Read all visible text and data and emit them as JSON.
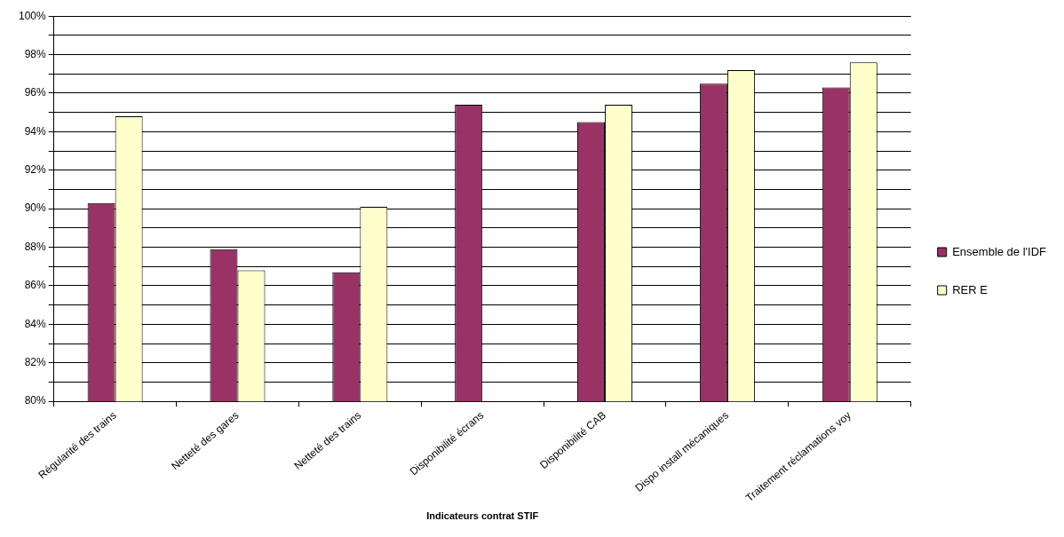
{
  "chart_data": {
    "type": "bar",
    "xlabel": "Indicateurs contrat STIF",
    "categories": [
      "Régularité des trains",
      "Netteté des gares",
      "Netteté des trains",
      "Disponibilité écrans",
      "Disponibilité CAB",
      "Dispo install mécaniques",
      "Traitement réclamations voy"
    ],
    "series": [
      {
        "name": "Ensemble de l'IDF",
        "color": "#993366",
        "values": [
          90.3,
          87.9,
          86.7,
          95.4,
          94.5,
          96.5,
          96.3
        ]
      },
      {
        "name": "RER E",
        "color": "#ffffcc",
        "values": [
          94.8,
          86.8,
          90.1,
          null,
          95.4,
          97.2,
          97.6
        ]
      }
    ],
    "ylim": [
      80,
      100
    ],
    "yticks": [
      {
        "value": 80,
        "label": "80%"
      },
      {
        "value": 81,
        "label": null
      },
      {
        "value": 82,
        "label": "82%"
      },
      {
        "value": 83,
        "label": null
      },
      {
        "value": 84,
        "label": "84%"
      },
      {
        "value": 85,
        "label": null
      },
      {
        "value": 86,
        "label": "86%"
      },
      {
        "value": 87,
        "label": null
      },
      {
        "value": 88,
        "label": "88%"
      },
      {
        "value": 89,
        "label": null
      },
      {
        "value": 90,
        "label": "90%"
      },
      {
        "value": 91,
        "label": null
      },
      {
        "value": 92,
        "label": "92%"
      },
      {
        "value": 93,
        "label": null
      },
      {
        "value": 94,
        "label": "94%"
      },
      {
        "value": 95,
        "label": null
      },
      {
        "value": 96,
        "label": "96%"
      },
      {
        "value": 97,
        "label": null
      },
      {
        "value": 98,
        "label": "98%"
      },
      {
        "value": 99,
        "label": null
      },
      {
        "value": 100,
        "label": "100%"
      }
    ],
    "grid": "y",
    "legend": "right"
  }
}
